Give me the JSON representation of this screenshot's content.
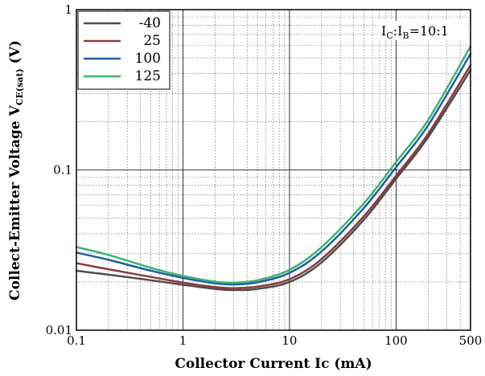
{
  "chart_data": {
    "type": "line",
    "xlabel": "Collector Current Ic (mA)",
    "ylabel_main": "Collect-Emitter Voltage V",
    "ylabel_sub": "CE(sat)",
    "ylabel_unit": " (V)",
    "xscale": "log",
    "yscale": "log",
    "xlim": [
      0.1,
      500
    ],
    "ylim": [
      0.01,
      1
    ],
    "x_tick_labels": [
      {
        "value": 0.1,
        "label": "0.1"
      },
      {
        "value": 1,
        "label": "1"
      },
      {
        "value": 10,
        "label": "10"
      },
      {
        "value": 100,
        "label": "100"
      },
      {
        "value": 500,
        "label": "500"
      }
    ],
    "y_tick_labels": [
      {
        "value": 0.01,
        "label": "0.01"
      },
      {
        "value": 0.1,
        "label": "0.1"
      },
      {
        "value": 1,
        "label": "1"
      }
    ],
    "grid": true,
    "legend_position": "top-left",
    "annotation": {
      "parts": [
        "I",
        "C",
        ":I",
        "B",
        "=10:1"
      ]
    },
    "series": [
      {
        "name": "-40",
        "color": "#4d4d4d",
        "x": [
          0.1,
          0.2,
          0.5,
          1,
          2,
          3,
          5,
          10,
          20,
          50,
          100,
          200,
          500
        ],
        "y": [
          0.0235,
          0.0222,
          0.0205,
          0.0192,
          0.0181,
          0.0178,
          0.0181,
          0.02,
          0.0265,
          0.049,
          0.088,
          0.16,
          0.42
        ]
      },
      {
        "name": "25",
        "color": "#8b3a3a",
        "x": [
          0.1,
          0.2,
          0.5,
          1,
          2,
          3,
          5,
          10,
          20,
          50,
          100,
          200,
          500
        ],
        "y": [
          0.0262,
          0.024,
          0.0215,
          0.0198,
          0.0186,
          0.0183,
          0.0187,
          0.0208,
          0.0278,
          0.0515,
          0.092,
          0.168,
          0.45
        ]
      },
      {
        "name": "100",
        "color": "#1f5fa8",
        "x": [
          0.1,
          0.2,
          0.5,
          1,
          2,
          3,
          5,
          10,
          20,
          50,
          100,
          200,
          500
        ],
        "y": [
          0.0305,
          0.0275,
          0.0235,
          0.0212,
          0.0196,
          0.0193,
          0.0199,
          0.0228,
          0.031,
          0.058,
          0.104,
          0.19,
          0.53
        ]
      },
      {
        "name": "125",
        "color": "#3cb371",
        "x": [
          0.1,
          0.2,
          0.5,
          1,
          2,
          3,
          5,
          10,
          20,
          50,
          100,
          200,
          500
        ],
        "y": [
          0.033,
          0.0295,
          0.0245,
          0.0218,
          0.0201,
          0.0198,
          0.0205,
          0.0238,
          0.033,
          0.062,
          0.112,
          0.205,
          0.59
        ]
      }
    ]
  }
}
